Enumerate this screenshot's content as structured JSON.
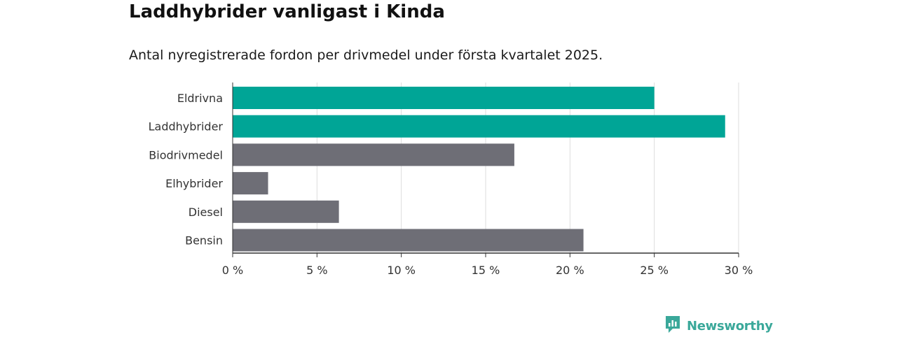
{
  "title": "Laddhybrider vanligast i Kinda",
  "subtitle": "Antal nyregistrerade fordon per drivmedel under första kvartalet 2025.",
  "brand": {
    "name": "Newsworthy",
    "icon": "newsworthy-logo-icon",
    "color": "#3aa89a"
  },
  "colors": {
    "highlight": "#00a596",
    "default": "#6e6e76",
    "grid": "#dddddd",
    "axis": "#333333"
  },
  "chart_data": {
    "type": "bar",
    "orientation": "horizontal",
    "categories": [
      "Eldrivna",
      "Laddhybrider",
      "Biodrivmedel",
      "Elhybrider",
      "Diesel",
      "Bensin"
    ],
    "values": [
      25.0,
      29.2,
      16.7,
      2.1,
      6.3,
      20.8
    ],
    "highlighted": [
      true,
      true,
      false,
      false,
      false,
      false
    ],
    "xlim": [
      0,
      30
    ],
    "xticks": [
      0,
      5,
      10,
      15,
      20,
      25,
      30
    ],
    "xtick_labels": [
      "0 %",
      "5 %",
      "10 %",
      "15 %",
      "20 %",
      "25 %",
      "30 %"
    ],
    "unit": "%",
    "grid": true,
    "legend": "none"
  }
}
